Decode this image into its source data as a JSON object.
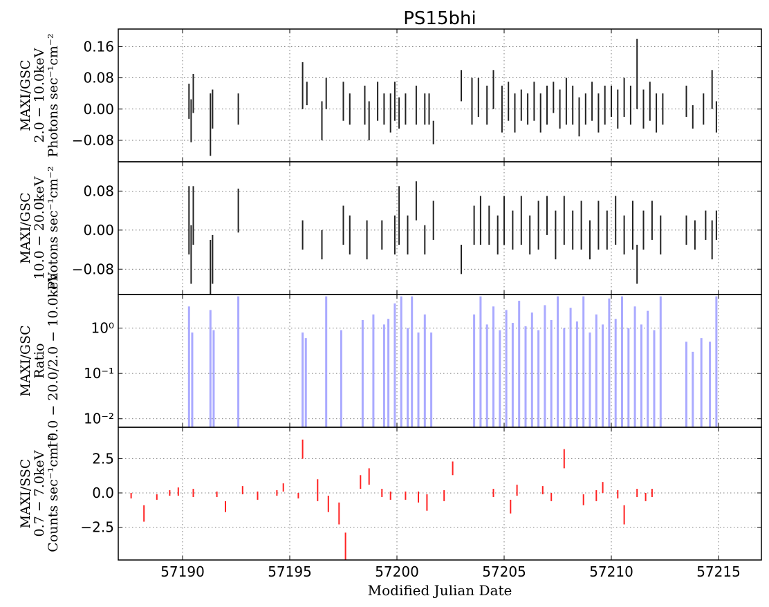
{
  "chart_data": {
    "type": "multi-panel",
    "title": "PS15bhi",
    "xlabel": "Modified Julian Date",
    "xlim": [
      57187.0,
      57217.0
    ],
    "xticks": [
      57190,
      57195,
      57200,
      57205,
      57210,
      57215
    ],
    "xtick_labels": [
      "57190",
      "57195",
      "57200",
      "57205",
      "57210",
      "57215"
    ],
    "panels": [
      {
        "type": "errorbar",
        "ylabel_lines": [
          "MAXI/GSC",
          "2.0 − 10.0keV",
          "Photons sec⁻¹cm⁻²"
        ],
        "ylim": [
          -0.135,
          0.205
        ],
        "yticks": [
          -0.08,
          0.0,
          0.08,
          0.16
        ],
        "ytick_labels": [
          "−0.08",
          "0.00",
          "0.08",
          "0.16"
        ],
        "grid": true,
        "color": "#222222",
        "points": [
          [
            57190.3,
            0.02,
            0.045
          ],
          [
            57190.4,
            -0.03,
            0.055
          ],
          [
            57190.5,
            0.04,
            0.05
          ],
          [
            57191.3,
            -0.04,
            0.08
          ],
          [
            57191.4,
            0.0,
            0.05
          ],
          [
            57192.6,
            0.0,
            0.04
          ],
          [
            57195.6,
            0.06,
            0.06
          ],
          [
            57195.8,
            0.04,
            0.03
          ],
          [
            57196.5,
            -0.03,
            0.05
          ],
          [
            57196.7,
            0.04,
            0.04
          ],
          [
            57197.5,
            0.02,
            0.05
          ],
          [
            57197.8,
            0.0,
            0.04
          ],
          [
            57198.5,
            0.01,
            0.05
          ],
          [
            57198.7,
            -0.03,
            0.05
          ],
          [
            57199.1,
            0.02,
            0.05
          ],
          [
            57199.4,
            0.0,
            0.04
          ],
          [
            57199.7,
            -0.01,
            0.05
          ],
          [
            57199.9,
            0.02,
            0.05
          ],
          [
            57200.1,
            -0.01,
            0.04
          ],
          [
            57200.4,
            0.0,
            0.04
          ],
          [
            57200.9,
            0.01,
            0.05
          ],
          [
            57201.3,
            0.0,
            0.04
          ],
          [
            57201.5,
            0.0,
            0.04
          ],
          [
            57201.7,
            -0.06,
            0.03
          ],
          [
            57203.0,
            0.06,
            0.04
          ],
          [
            57203.5,
            0.02,
            0.06
          ],
          [
            57203.8,
            0.03,
            0.05
          ],
          [
            57204.2,
            0.01,
            0.05
          ],
          [
            57204.5,
            0.05,
            0.05
          ],
          [
            57204.9,
            0.0,
            0.06
          ],
          [
            57205.2,
            0.02,
            0.05
          ],
          [
            57205.5,
            -0.01,
            0.05
          ],
          [
            57205.8,
            0.01,
            0.04
          ],
          [
            57206.1,
            0.0,
            0.04
          ],
          [
            57206.4,
            0.02,
            0.05
          ],
          [
            57206.7,
            -0.01,
            0.05
          ],
          [
            57207.0,
            0.01,
            0.05
          ],
          [
            57207.3,
            0.03,
            0.04
          ],
          [
            57207.6,
            0.0,
            0.05
          ],
          [
            57207.9,
            0.02,
            0.06
          ],
          [
            57208.2,
            0.01,
            0.05
          ],
          [
            57208.5,
            -0.02,
            0.05
          ],
          [
            57208.8,
            0.0,
            0.04
          ],
          [
            57209.1,
            0.02,
            0.05
          ],
          [
            57209.4,
            -0.01,
            0.05
          ],
          [
            57209.7,
            0.01,
            0.05
          ],
          [
            57210.0,
            0.02,
            0.04
          ],
          [
            57210.3,
            0.0,
            0.05
          ],
          [
            57210.6,
            0.03,
            0.05
          ],
          [
            57210.9,
            0.01,
            0.05
          ],
          [
            57211.2,
            0.09,
            0.09
          ],
          [
            57211.5,
            0.0,
            0.05
          ],
          [
            57211.8,
            0.02,
            0.05
          ],
          [
            57212.1,
            -0.01,
            0.05
          ],
          [
            57212.4,
            0.0,
            0.04
          ],
          [
            57213.5,
            0.02,
            0.04
          ],
          [
            57213.8,
            -0.02,
            0.03
          ],
          [
            57214.3,
            0.0,
            0.04
          ],
          [
            57214.7,
            0.05,
            0.05
          ],
          [
            57214.9,
            -0.02,
            0.04
          ]
        ]
      },
      {
        "type": "errorbar",
        "ylabel_lines": [
          "MAXI/GSC",
          "10.0 − 20.0keV",
          "Photons sec⁻¹cm⁻²"
        ],
        "ylim": [
          -0.132,
          0.14
        ],
        "yticks": [
          -0.08,
          0.0,
          0.08
        ],
        "ytick_labels": [
          "−0.08",
          "0.00",
          "0.08"
        ],
        "grid": true,
        "color": "#222222",
        "points": [
          [
            57190.3,
            0.02,
            0.07
          ],
          [
            57190.4,
            -0.05,
            0.06
          ],
          [
            57190.5,
            0.03,
            0.06
          ],
          [
            57191.3,
            -0.08,
            0.06
          ],
          [
            57191.4,
            -0.06,
            0.05
          ],
          [
            57192.6,
            0.04,
            0.045
          ],
          [
            57195.6,
            -0.01,
            0.03
          ],
          [
            57196.5,
            -0.03,
            0.03
          ],
          [
            57197.5,
            0.01,
            0.04
          ],
          [
            57197.8,
            -0.01,
            0.04
          ],
          [
            57198.6,
            -0.02,
            0.04
          ],
          [
            57199.3,
            -0.01,
            0.03
          ],
          [
            57199.9,
            -0.01,
            0.04
          ],
          [
            57200.1,
            0.03,
            0.06
          ],
          [
            57200.5,
            -0.01,
            0.04
          ],
          [
            57200.9,
            0.06,
            0.04
          ],
          [
            57201.3,
            -0.02,
            0.03
          ],
          [
            57201.7,
            0.02,
            0.04
          ],
          [
            57203.0,
            -0.06,
            0.03
          ],
          [
            57203.6,
            0.01,
            0.04
          ],
          [
            57203.9,
            0.02,
            0.05
          ],
          [
            57204.3,
            0.01,
            0.04
          ],
          [
            57204.7,
            -0.01,
            0.04
          ],
          [
            57205.0,
            0.02,
            0.05
          ],
          [
            57205.4,
            0.0,
            0.04
          ],
          [
            57205.8,
            0.02,
            0.05
          ],
          [
            57206.2,
            -0.01,
            0.04
          ],
          [
            57206.6,
            0.01,
            0.05
          ],
          [
            57207.0,
            0.03,
            0.04
          ],
          [
            57207.4,
            -0.01,
            0.05
          ],
          [
            57207.8,
            0.02,
            0.05
          ],
          [
            57208.2,
            0.0,
            0.04
          ],
          [
            57208.6,
            0.01,
            0.05
          ],
          [
            57209.0,
            -0.02,
            0.04
          ],
          [
            57209.4,
            0.01,
            0.05
          ],
          [
            57209.8,
            0.0,
            0.04
          ],
          [
            57210.2,
            0.02,
            0.05
          ],
          [
            57210.6,
            -0.01,
            0.04
          ],
          [
            57211.0,
            0.01,
            0.05
          ],
          [
            57211.2,
            -0.07,
            0.04
          ],
          [
            57211.5,
            0.0,
            0.04
          ],
          [
            57211.9,
            0.02,
            0.04
          ],
          [
            57212.3,
            -0.01,
            0.04
          ],
          [
            57213.5,
            0.0,
            0.03
          ],
          [
            57213.9,
            -0.01,
            0.03
          ],
          [
            57214.4,
            0.01,
            0.03
          ],
          [
            57214.7,
            -0.02,
            0.04
          ],
          [
            57214.9,
            0.01,
            0.03
          ]
        ]
      },
      {
        "type": "bar",
        "ylabel_lines": [
          "MAXI/GSC",
          "Ratio",
          "10.0 − 20.0/2.0 − 10.0keV"
        ],
        "yscale": "log",
        "ylim": [
          0.0065,
          5.5
        ],
        "yticks": [
          0.01,
          0.1,
          1
        ],
        "ytick_labels": [
          "10⁻²",
          "10⁻¹",
          "10⁰"
        ],
        "grid": true,
        "color": "#aaaaff",
        "bars": [
          [
            57190.3,
            3.0
          ],
          [
            57190.45,
            0.8
          ],
          [
            57191.3,
            2.5
          ],
          [
            57191.45,
            0.9
          ],
          [
            57192.6,
            5.0
          ],
          [
            57195.6,
            0.8
          ],
          [
            57195.75,
            0.6
          ],
          [
            57196.7,
            5.0
          ],
          [
            57197.4,
            0.9
          ],
          [
            57198.4,
            1.5
          ],
          [
            57198.9,
            2.0
          ],
          [
            57199.4,
            1.2
          ],
          [
            57199.6,
            1.6
          ],
          [
            57199.9,
            3.5
          ],
          [
            57200.2,
            5.0
          ],
          [
            57200.5,
            1.0
          ],
          [
            57200.7,
            5.0
          ],
          [
            57201.0,
            0.8
          ],
          [
            57201.3,
            2.0
          ],
          [
            57201.6,
            0.8
          ],
          [
            57203.6,
            2.0
          ],
          [
            57203.9,
            5.0
          ],
          [
            57204.2,
            1.2
          ],
          [
            57204.5,
            3.0
          ],
          [
            57204.8,
            0.9
          ],
          [
            57205.1,
            2.5
          ],
          [
            57205.4,
            1.3
          ],
          [
            57205.7,
            4.0
          ],
          [
            57206.0,
            1.1
          ],
          [
            57206.3,
            2.2
          ],
          [
            57206.6,
            0.9
          ],
          [
            57206.9,
            3.2
          ],
          [
            57207.2,
            1.5
          ],
          [
            57207.5,
            5.0
          ],
          [
            57207.8,
            1.0
          ],
          [
            57208.1,
            2.8
          ],
          [
            57208.4,
            1.4
          ],
          [
            57208.7,
            5.0
          ],
          [
            57209.0,
            0.8
          ],
          [
            57209.3,
            2.0
          ],
          [
            57209.6,
            1.2
          ],
          [
            57209.9,
            4.5
          ],
          [
            57210.2,
            1.6
          ],
          [
            57210.5,
            5.0
          ],
          [
            57210.8,
            1.0
          ],
          [
            57211.1,
            3.0
          ],
          [
            57211.4,
            1.2
          ],
          [
            57211.7,
            2.4
          ],
          [
            57212.0,
            0.9
          ],
          [
            57212.3,
            5.0
          ],
          [
            57213.5,
            0.5
          ],
          [
            57213.8,
            0.3
          ],
          [
            57214.2,
            0.6
          ],
          [
            57214.6,
            0.5
          ],
          [
            57214.9,
            5.0
          ]
        ]
      },
      {
        "type": "errorbar",
        "ylabel_lines": [
          "MAXI/SSC",
          "0.7 − 7.0keV",
          "Counts sec⁻¹cm⁻²"
        ],
        "ylim": [
          -4.9,
          4.8
        ],
        "yticks": [
          -2.5,
          0.0,
          2.5
        ],
        "ytick_labels": [
          "−2.5",
          "0.0",
          "2.5"
        ],
        "grid": true,
        "color": "#ff2222",
        "points": [
          [
            57187.6,
            -0.2,
            0.2
          ],
          [
            57188.2,
            -1.5,
            0.6
          ],
          [
            57188.8,
            -0.3,
            0.2
          ],
          [
            57189.4,
            0.0,
            0.2
          ],
          [
            57189.8,
            0.1,
            0.3
          ],
          [
            57190.5,
            0.0,
            0.3
          ],
          [
            57191.6,
            -0.1,
            0.2
          ],
          [
            57192.0,
            -1.0,
            0.4
          ],
          [
            57192.8,
            0.2,
            0.3
          ],
          [
            57193.5,
            -0.2,
            0.3
          ],
          [
            57194.4,
            0.0,
            0.2
          ],
          [
            57194.7,
            0.4,
            0.3
          ],
          [
            57195.4,
            -0.2,
            0.2
          ],
          [
            57195.6,
            3.2,
            0.7
          ],
          [
            57196.3,
            0.2,
            0.8
          ],
          [
            57196.8,
            -0.8,
            0.6
          ],
          [
            57197.3,
            -1.5,
            0.8
          ],
          [
            57197.6,
            -3.9,
            1.0
          ],
          [
            57198.3,
            0.8,
            0.5
          ],
          [
            57198.7,
            1.2,
            0.6
          ],
          [
            57199.3,
            0.0,
            0.3
          ],
          [
            57199.7,
            -0.2,
            0.3
          ],
          [
            57200.4,
            -0.2,
            0.3
          ],
          [
            57201.0,
            -0.3,
            0.4
          ],
          [
            57201.4,
            -0.7,
            0.6
          ],
          [
            57202.2,
            -0.2,
            0.4
          ],
          [
            57202.6,
            1.8,
            0.5
          ],
          [
            57204.5,
            0.0,
            0.3
          ],
          [
            57205.3,
            -1.0,
            0.5
          ],
          [
            57205.6,
            0.2,
            0.4
          ],
          [
            57206.8,
            0.2,
            0.3
          ],
          [
            57207.2,
            -0.3,
            0.3
          ],
          [
            57207.8,
            2.5,
            0.7
          ],
          [
            57208.7,
            -0.5,
            0.4
          ],
          [
            57209.3,
            -0.2,
            0.4
          ],
          [
            57209.6,
            0.4,
            0.4
          ],
          [
            57210.3,
            -0.1,
            0.3
          ],
          [
            57210.6,
            -1.6,
            0.7
          ],
          [
            57211.2,
            0.0,
            0.3
          ],
          [
            57211.6,
            -0.3,
            0.3
          ],
          [
            57211.9,
            0.0,
            0.3
          ]
        ]
      }
    ]
  }
}
